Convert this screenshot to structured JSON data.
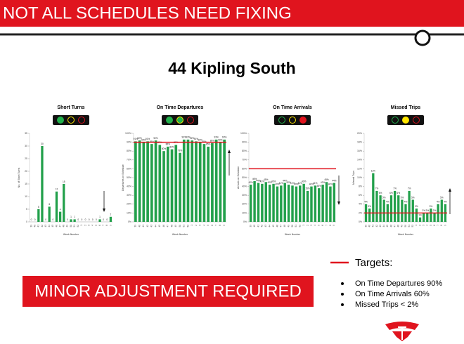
{
  "header": {
    "title": "NOT ALL SCHEDULES NEED FIXING"
  },
  "subtitle": "44 Kipling South",
  "banner": "MINOR ADJUSTMENT REQUIRED",
  "targets": {
    "title": "Targets:",
    "items": [
      "On Time Departures 90%",
      "On Time Arrivals 60%",
      "Missed Trips < 2%"
    ]
  },
  "chart_data": [
    {
      "type": "bar",
      "title": "Short Turns",
      "lights": [
        "#22b14c",
        null,
        null
      ],
      "color": "#22a04b",
      "xlabel": "Week Number",
      "ylabel": "No. of Short Turns",
      "categories": [
        "39",
        "40",
        "41",
        "42",
        "43",
        "44",
        "45",
        "46",
        "47",
        "48",
        "49",
        "50",
        "51",
        "52",
        "1",
        "2",
        "3",
        "4",
        "5",
        "6",
        "7",
        "8",
        "9"
      ],
      "values": [
        0,
        0,
        5,
        30,
        0,
        6,
        0,
        12,
        4,
        15,
        0,
        1,
        1,
        0,
        0,
        0,
        0,
        0,
        0,
        1,
        0,
        0,
        2
      ],
      "ylim": [
        0,
        35
      ],
      "yticks": [
        0,
        5,
        10,
        15,
        20,
        25,
        30,
        35
      ]
    },
    {
      "type": "bar",
      "title": "On Time Departures",
      "lights": [
        "#22b14c",
        "#22b14c",
        null
      ],
      "color": "#22a04b",
      "xlabel": "Week Number",
      "ylabel": "Departures on Schedule",
      "target": 90,
      "target_color": "#e0141e",
      "categories": [
        "39",
        "40",
        "41",
        "42",
        "43",
        "44",
        "45",
        "46",
        "47",
        "48",
        "49",
        "50",
        "51",
        "52",
        "1",
        "2",
        "3",
        "4",
        "5",
        "6",
        "7",
        "8",
        "9"
      ],
      "values": [
        91,
        92,
        90,
        91,
        88,
        92,
        87,
        80,
        85,
        82,
        87,
        78,
        93,
        93,
        92,
        91,
        90,
        88,
        85,
        89,
        93,
        90,
        93
      ],
      "value_labels": [
        "91%",
        "92%",
        "90%",
        "91%",
        "88%",
        "92%",
        "87%",
        "80%",
        "85%",
        "82%",
        "87%",
        "78%",
        "93%",
        "93%",
        "92%",
        "91%",
        "90%",
        "88%",
        "85%",
        "89%",
        "93%",
        "90%",
        "93%"
      ],
      "ylim": [
        0,
        100
      ],
      "yticks": [
        {
          "value": 0,
          "label": "0%"
        },
        {
          "value": 10,
          "label": "10%"
        },
        {
          "value": 20,
          "label": "20%"
        },
        {
          "value": 30,
          "label": "30%"
        },
        {
          "value": 40,
          "label": "40%"
        },
        {
          "value": 50,
          "label": "50%"
        },
        {
          "value": 60,
          "label": "60%"
        },
        {
          "value": 70,
          "label": "70%"
        },
        {
          "value": 80,
          "label": "80%"
        },
        {
          "value": 90,
          "label": "90%"
        },
        {
          "value": 100,
          "label": "100%"
        }
      ]
    },
    {
      "type": "bar",
      "title": "On Time Arrivals",
      "lights": [
        null,
        null,
        "#e0141e"
      ],
      "color": "#22a04b",
      "xlabel": "Week Number",
      "ylabel": "Arrivals on Schedule",
      "target": 60,
      "target_color": "#e0141e",
      "categories": [
        "39",
        "40",
        "41",
        "42",
        "43",
        "44",
        "45",
        "46",
        "47",
        "48",
        "49",
        "50",
        "51",
        "52",
        "1",
        "2",
        "3",
        "4",
        "5",
        "6",
        "7",
        "8",
        "9"
      ],
      "values": [
        42,
        46,
        44,
        43,
        45,
        42,
        43,
        40,
        41,
        44,
        42,
        41,
        40,
        41,
        43,
        35,
        40,
        41,
        38,
        42,
        45,
        40,
        44
      ],
      "value_labels": [
        "42%",
        "46%",
        "44%",
        "43%",
        "45%",
        "42%",
        "43%",
        "40%",
        "41%",
        "44%",
        "42%",
        "41%",
        "40%",
        "41%",
        "43%",
        "35%",
        "40%",
        "41%",
        "38%",
        "42%",
        "45%",
        "40%",
        "44%"
      ],
      "ylim": [
        0,
        100
      ],
      "yticks": [
        {
          "value": 0,
          "label": "0%"
        },
        {
          "value": 10,
          "label": "10%"
        },
        {
          "value": 20,
          "label": "20%"
        },
        {
          "value": 30,
          "label": "30%"
        },
        {
          "value": 40,
          "label": "40%"
        },
        {
          "value": 50,
          "label": "50%"
        },
        {
          "value": 60,
          "label": "60%"
        },
        {
          "value": 70,
          "label": "70%"
        },
        {
          "value": 80,
          "label": "80%"
        },
        {
          "value": 90,
          "label": "90%"
        },
        {
          "value": 100,
          "label": "100%"
        }
      ]
    },
    {
      "type": "bar",
      "title": "Missed Trips",
      "lights": [
        null,
        "#ffe600",
        null
      ],
      "color": "#22a04b",
      "xlabel": "Week Number",
      "ylabel": "Missed Trips",
      "target": 2,
      "target_color": "#e0141e",
      "categories": [
        "39",
        "40",
        "41",
        "42",
        "43",
        "44",
        "45",
        "46",
        "47",
        "48",
        "49",
        "50",
        "51",
        "52",
        "1",
        "2",
        "3",
        "4",
        "5",
        "6",
        "7",
        "8",
        "9"
      ],
      "values": [
        4,
        3,
        11,
        7,
        6,
        5,
        4,
        6,
        7,
        6,
        5,
        4,
        7,
        5,
        3,
        1,
        2,
        2,
        3,
        2,
        4,
        5,
        4
      ],
      "value_labels": [
        "4%",
        "3%",
        "11%",
        "7%",
        "6%",
        "5%",
        "4%",
        "6%",
        "7%",
        "6%",
        "5%",
        "4%",
        "7%",
        "5%",
        "3%",
        "1%",
        "2%",
        "2%",
        "3%",
        "2%",
        "4%",
        "5%",
        "4%"
      ],
      "ylim": [
        0,
        20
      ],
      "yticks": [
        {
          "value": 0,
          "label": "0%"
        },
        {
          "value": 2,
          "label": "2%"
        },
        {
          "value": 4,
          "label": "4%"
        },
        {
          "value": 6,
          "label": "6%"
        },
        {
          "value": 8,
          "label": "8%"
        },
        {
          "value": 10,
          "label": "10%"
        },
        {
          "value": 12,
          "label": "12%"
        },
        {
          "value": 14,
          "label": "14%"
        },
        {
          "value": 16,
          "label": "16%"
        },
        {
          "value": 18,
          "label": "18%"
        },
        {
          "value": 20,
          "label": "20%"
        }
      ]
    }
  ]
}
